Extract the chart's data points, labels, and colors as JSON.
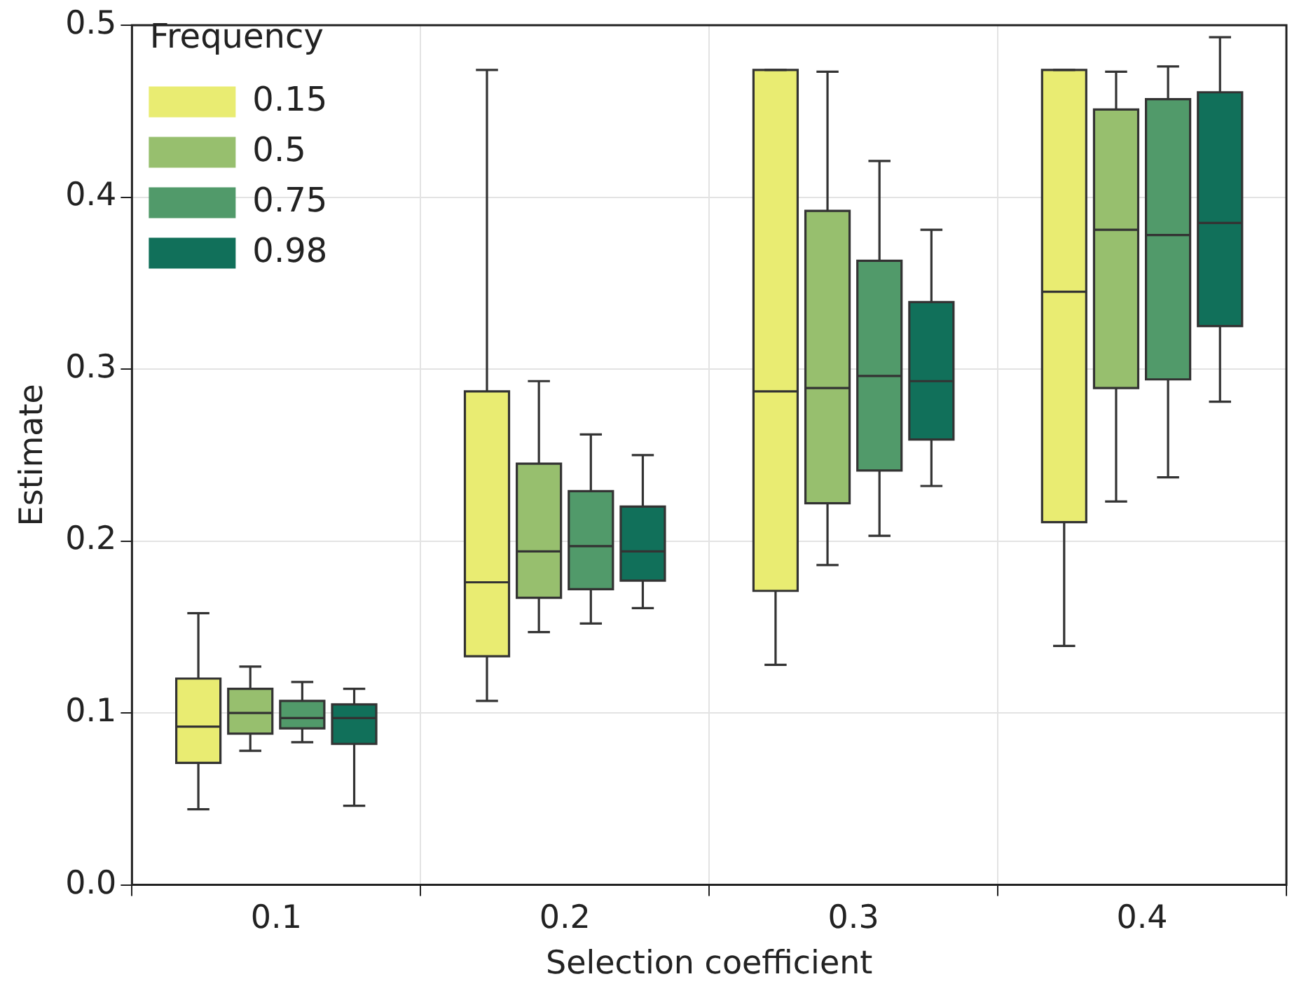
{
  "chart_data": {
    "type": "box",
    "xlabel": "Selection coefficient",
    "ylabel": "Estimate",
    "legend_title": "Frequency",
    "legend": "top left",
    "grid": true,
    "categories": [
      "0.1",
      "0.2",
      "0.3",
      "0.4"
    ],
    "ylim": [
      0,
      0.5
    ],
    "yticks": [
      {
        "value": 0,
        "label": "0.0"
      },
      0.1,
      0.2,
      0.3,
      0.4,
      0.5
    ],
    "series": [
      {
        "name": "0.15",
        "color": "#e9ec72",
        "boxes": [
          {
            "low": 0.044,
            "q1": 0.071,
            "median": 0.092,
            "q3": 0.12,
            "high": 0.158
          },
          {
            "low": 0.107,
            "q1": 0.133,
            "median": 0.176,
            "q3": 0.287,
            "high": 0.474
          },
          {
            "low": 0.128,
            "q1": 0.171,
            "median": 0.287,
            "q3": 0.474,
            "high": 0.474
          },
          {
            "low": 0.139,
            "q1": 0.211,
            "median": 0.345,
            "q3": 0.474,
            "high": 0.474
          }
        ]
      },
      {
        "name": "0.5",
        "color": "#97bf6e",
        "boxes": [
          {
            "low": 0.078,
            "q1": 0.088,
            "median": 0.1,
            "q3": 0.114,
            "high": 0.127
          },
          {
            "low": 0.147,
            "q1": 0.167,
            "median": 0.194,
            "q3": 0.245,
            "high": 0.293
          },
          {
            "low": 0.186,
            "q1": 0.222,
            "median": 0.289,
            "q3": 0.392,
            "high": 0.473
          },
          {
            "low": 0.223,
            "q1": 0.289,
            "median": 0.381,
            "q3": 0.451,
            "high": 0.473
          }
        ]
      },
      {
        "name": "0.75",
        "color": "#519a6a",
        "boxes": [
          {
            "low": 0.083,
            "q1": 0.091,
            "median": 0.097,
            "q3": 0.107,
            "high": 0.118
          },
          {
            "low": 0.152,
            "q1": 0.172,
            "median": 0.197,
            "q3": 0.229,
            "high": 0.262
          },
          {
            "low": 0.203,
            "q1": 0.241,
            "median": 0.296,
            "q3": 0.363,
            "high": 0.421
          },
          {
            "low": 0.237,
            "q1": 0.294,
            "median": 0.378,
            "q3": 0.457,
            "high": 0.476
          }
        ]
      },
      {
        "name": "0.98",
        "color": "#11705a",
        "boxes": [
          {
            "low": 0.046,
            "q1": 0.082,
            "median": 0.097,
            "q3": 0.105,
            "high": 0.114
          },
          {
            "low": 0.161,
            "q1": 0.177,
            "median": 0.194,
            "q3": 0.22,
            "high": 0.25
          },
          {
            "low": 0.232,
            "q1": 0.259,
            "median": 0.293,
            "q3": 0.339,
            "high": 0.381
          },
          {
            "low": 0.281,
            "q1": 0.325,
            "median": 0.385,
            "q3": 0.461,
            "high": 0.493
          }
        ]
      }
    ]
  }
}
